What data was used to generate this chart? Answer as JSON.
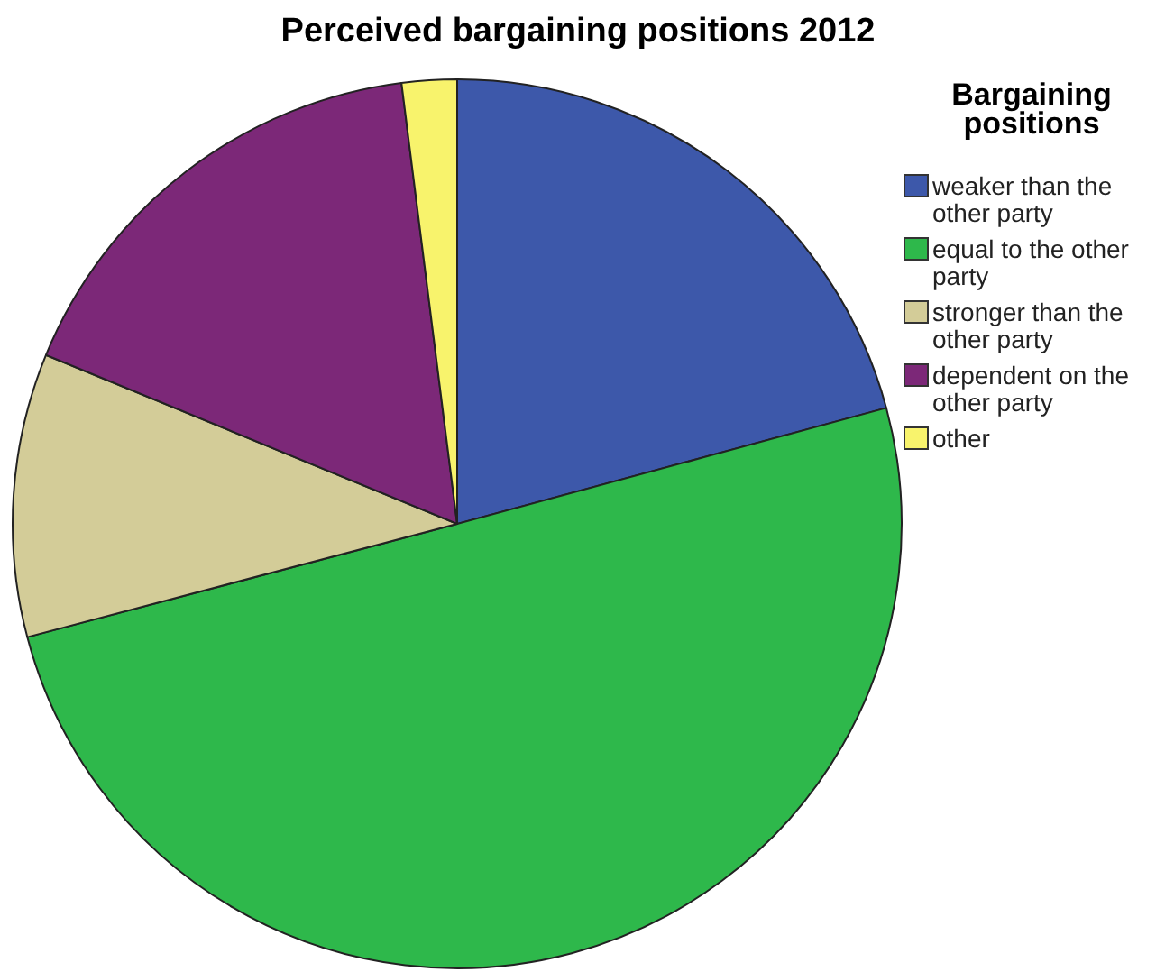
{
  "chart_data": {
    "type": "pie",
    "title": "Perceived bargaining positions 2012",
    "legend_title": "Bargaining positions",
    "categories": [
      "weaker than the other party",
      "equal to the other party",
      "stronger than the other party",
      "dependent on the other party",
      "other"
    ],
    "values": [
      20.8,
      50.1,
      10.3,
      16.8,
      2.0
    ],
    "colors": [
      "#3d58aa",
      "#2eb84b",
      "#d3cc98",
      "#7c2878",
      "#f8f36c"
    ],
    "legend": "right"
  }
}
